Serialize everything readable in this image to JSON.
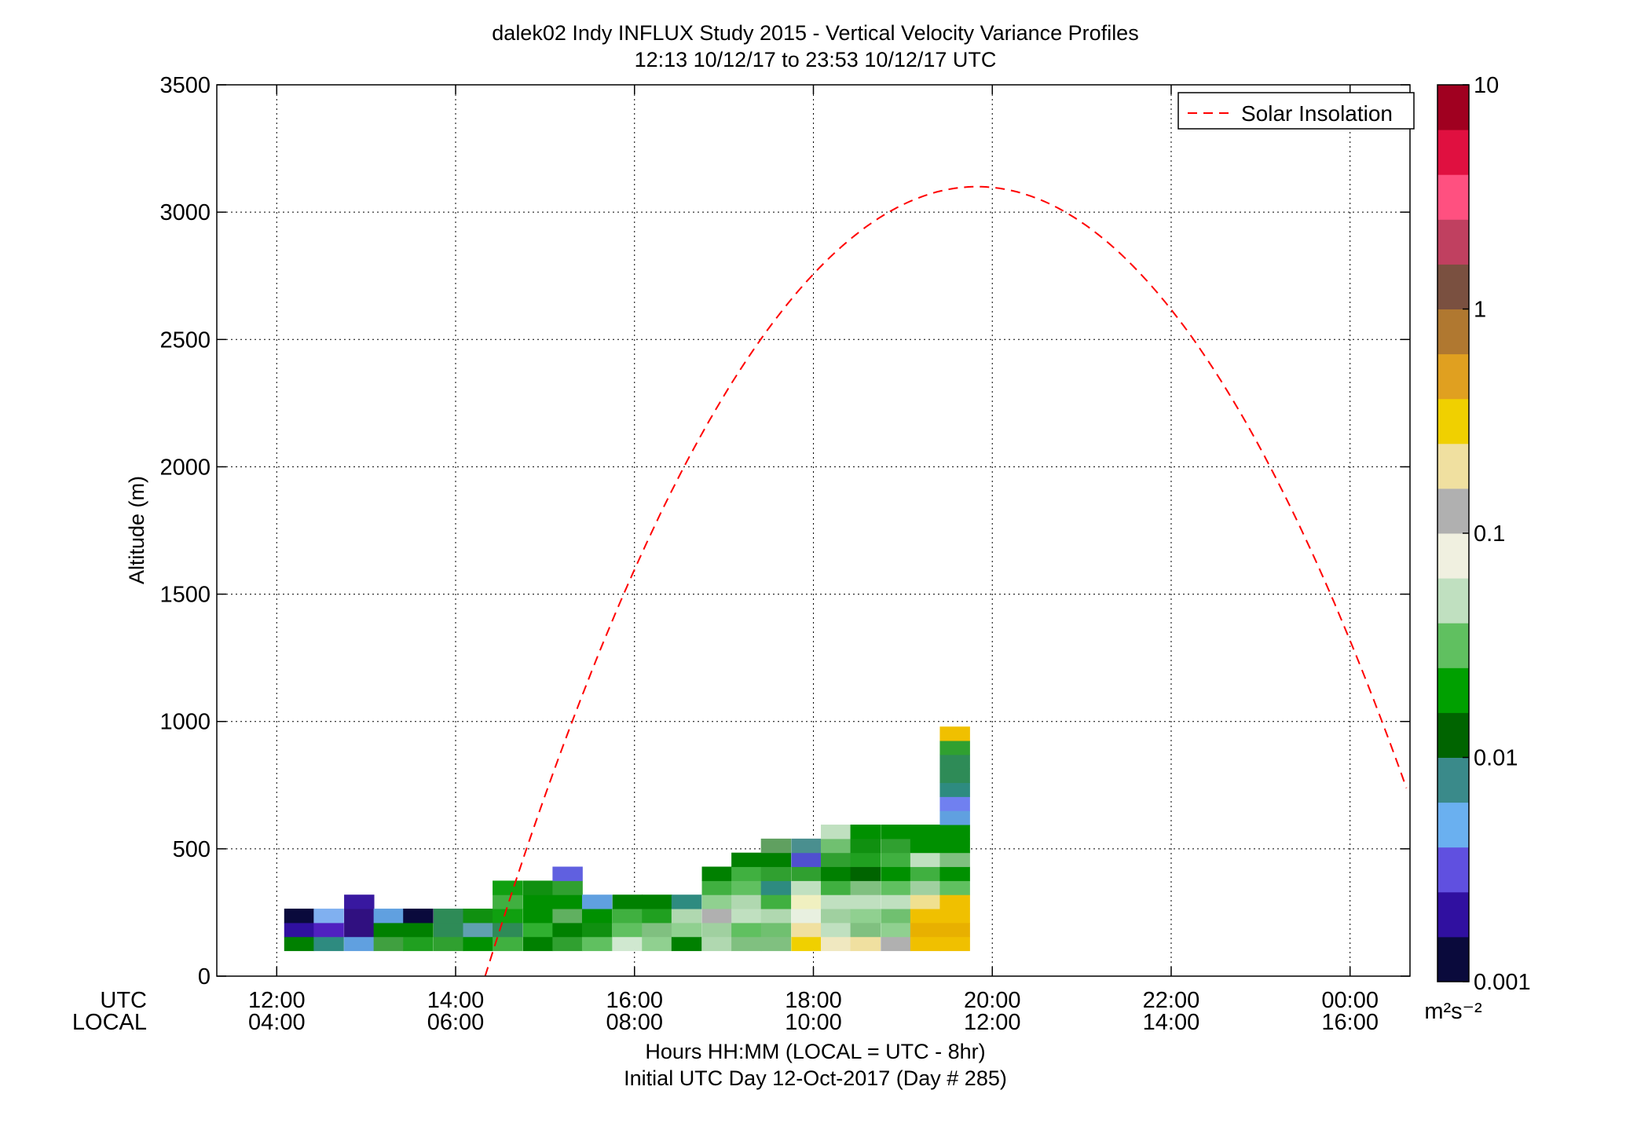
{
  "chart_data": {
    "type": "heatmap",
    "title": "dalek02 Indy INFLUX Study 2015 - Vertical Velocity Variance Profiles",
    "subtitle": "12:13 10/12/17 to 23:53 10/12/17  UTC",
    "ylabel": "Altitude (m)",
    "xlabel": "Hours HH:MM  (LOCAL = UTC - 8hr)",
    "xlabel2": "Initial UTC Day 12-Oct-2017 (Day # 285)",
    "row_labels": [
      "UTC",
      "LOCAL"
    ],
    "xlim_utc_hours": [
      11.33,
      24.67
    ],
    "ylim": [
      0,
      3500
    ],
    "grid": true,
    "x_ticks_utc": [
      "12:00",
      "14:00",
      "16:00",
      "18:00",
      "20:00",
      "22:00",
      "00:00"
    ],
    "x_ticks_local": [
      "04:00",
      "06:00",
      "08:00",
      "10:00",
      "12:00",
      "14:00",
      "16:00"
    ],
    "x_tick_hours": [
      12,
      14,
      16,
      18,
      20,
      22,
      24
    ],
    "y_ticks": [
      0,
      500,
      1000,
      1500,
      2000,
      2500,
      3000,
      3500
    ],
    "legend": {
      "label": "Solar Insolation",
      "placement": "top-right",
      "color": "#ff0000",
      "style": "dashed"
    },
    "solar_insolation": {
      "peak_hour_utc": 19.83,
      "peak_altitude_equiv": 3100,
      "zero_hour_utc": 14.33
    },
    "colorbar": {
      "scale": "log",
      "min": 0.001,
      "max": 10,
      "tick_values": [
        0.001,
        0.01,
        0.1,
        1,
        10
      ],
      "tick_labels": [
        "0.001",
        "0.01",
        "0.1",
        "1",
        "10"
      ],
      "unit": "m²s⁻²",
      "colors": [
        "#0a0a3c",
        "#3010a0",
        "#6050e0",
        "#6ab0f0",
        "#3a8a8a",
        "#006400",
        "#00a000",
        "#60c060",
        "#c0e0c0",
        "#f0f0e0",
        "#b0b0b0",
        "#f0e0a0",
        "#f0d000",
        "#e0a020",
        "#b07830",
        "#7a5040",
        "#c04060",
        "#ff5080",
        "#e01040",
        "#a00020"
      ]
    },
    "heatmap": {
      "x_start_hour_utc": 12.25,
      "time_bin_hours": 0.3333,
      "alt_start_m": 100,
      "alt_bin_m": 55,
      "columns": [
        {
          "h": 12.25,
          "cells": [
            "#008000",
            "#3010a0",
            "#0a0a3c"
          ]
        },
        {
          "h": 12.58,
          "cells": [
            "#2e8b80",
            "#5020c0",
            "#80b0f0"
          ]
        },
        {
          "h": 12.92,
          "cells": [
            "#60a0e0",
            "#301080",
            "#301080",
            "#3818a0"
          ]
        },
        {
          "h": 13.25,
          "cells": [
            "#40a040",
            "#008000",
            "#60a0e0"
          ]
        },
        {
          "h": 13.58,
          "cells": [
            "#20a020",
            "#008000",
            "#0a0a3c"
          ]
        },
        {
          "h": 13.92,
          "cells": [
            "#30a030",
            "#2e8b57",
            "#2e8b57"
          ]
        },
        {
          "h": 14.25,
          "cells": [
            "#009000",
            "#60a0b0",
            "#109010"
          ]
        },
        {
          "h": 14.58,
          "cells": [
            "#40b040",
            "#2e8b57",
            "#10a010",
            "#40b040",
            "#10a010"
          ]
        },
        {
          "h": 14.92,
          "cells": [
            "#008000",
            "#30b030",
            "#009000",
            "#009000",
            "#109010"
          ]
        },
        {
          "h": 15.25,
          "cells": [
            "#30a030",
            "#008000",
            "#60b060",
            "#009000",
            "#30a030",
            "#6060e0"
          ]
        },
        {
          "h": 15.58,
          "cells": [
            "#60c060",
            "#109010",
            "#009000",
            "#60a0e0"
          ]
        },
        {
          "h": 15.92,
          "cells": [
            "#d0e8d0",
            "#60c060",
            "#40b040",
            "#008000"
          ]
        },
        {
          "h": 16.25,
          "cells": [
            "#90d090",
            "#80c080",
            "#20a020",
            "#008000"
          ]
        },
        {
          "h": 16.58,
          "cells": [
            "#008000",
            "#90d090",
            "#b0d8b0",
            "#2e8b80"
          ]
        },
        {
          "h": 16.92,
          "cells": [
            "#b0d8b0",
            "#a0d0a0",
            "#b0b0b0",
            "#90d090",
            "#40b040",
            "#008000"
          ]
        },
        {
          "h": 17.25,
          "cells": [
            "#80c080",
            "#60c060",
            "#c0e0c0",
            "#b0d8b0",
            "#60c060",
            "#40b040",
            "#008000"
          ]
        },
        {
          "h": 17.58,
          "cells": [
            "#80c080",
            "#70c070",
            "#b0d8b0",
            "#40b040",
            "#2e8b80",
            "#30a030",
            "#008000",
            "#60a060"
          ]
        },
        {
          "h": 17.92,
          "cells": [
            "#f0d000",
            "#f0e0a0",
            "#e8f0e0",
            "#f0f0c0",
            "#c0e0c0",
            "#30a030",
            "#5050d0",
            "#4a8f8f"
          ]
        },
        {
          "h": 18.25,
          "cells": [
            "#f0e8c0",
            "#c0e0c0",
            "#a0d0a0",
            "#c0e0c0",
            "#40b040",
            "#008000",
            "#30a030",
            "#70c070",
            "#c0e0c0"
          ]
        },
        {
          "h": 18.58,
          "cells": [
            "#f0e0a0",
            "#80c080",
            "#90d090",
            "#c0e0c0",
            "#80c080",
            "#006400",
            "#20a020",
            "#109010",
            "#009000"
          ]
        },
        {
          "h": 18.92,
          "cells": [
            "#b0b0b0",
            "#90d090",
            "#70c070",
            "#c0e0c0",
            "#60c060",
            "#009000",
            "#40b040",
            "#30a030",
            "#009000"
          ]
        },
        {
          "h": 19.25,
          "cells": [
            "#f0c000",
            "#e8b000",
            "#f0c000",
            "#f0e090",
            "#a0d0a0",
            "#40b040",
            "#c0e0c0",
            "#009000",
            "#009000"
          ]
        },
        {
          "h": 19.58,
          "cells": [
            "#f0c000",
            "#e8b000",
            "#f0c000",
            "#f0c000",
            "#60c060",
            "#009000",
            "#80c080",
            "#009000",
            "#009000",
            "#60a0e0",
            "#7080f0",
            "#2e8b80",
            "#2e8b57",
            "#2e8b57",
            "#30a030",
            "#f0c000"
          ]
        }
      ]
    }
  }
}
